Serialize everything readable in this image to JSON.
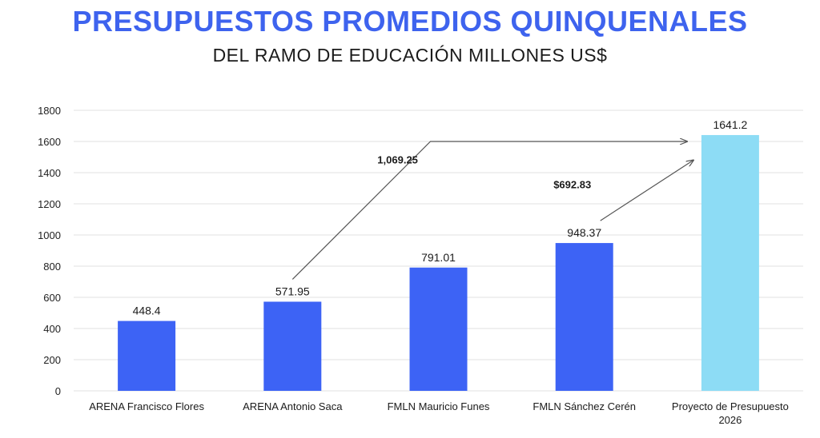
{
  "title": "PRESUPUESTOS PROMEDIOS QUINQUENALES",
  "subtitle": "DEL RAMO DE EDUCACIÓN MILLONES US$",
  "colors": {
    "title": "#3e63ee",
    "bar": "#3d63f5",
    "bar_highlight": "#8ddcf5",
    "grid": "#e2e2e2",
    "arrow": "#555555"
  },
  "chart_data": {
    "type": "bar",
    "categories": [
      "ARENA Francisco Flores",
      "ARENA Antonio Saca",
      "FMLN Mauricio Funes",
      "FMLN Sánchez Cerén",
      [
        "Proyecto de Presupuesto",
        "2026"
      ]
    ],
    "values": [
      448.4,
      571.95,
      791.01,
      948.37,
      1641.2
    ],
    "value_labels": [
      "448.4",
      "571.95",
      "791.01",
      "948.37",
      "1641.2"
    ],
    "highlight_index": 4,
    "ylim": [
      0,
      1800
    ],
    "yticks": [
      0,
      200,
      400,
      600,
      800,
      1000,
      1200,
      1400,
      1600,
      1800
    ],
    "grid": true,
    "annotations": [
      {
        "text": "1,069.25",
        "from_category": 1,
        "to_category": 4
      },
      {
        "text": "$692.83",
        "from_category": 3,
        "to_category": 4
      }
    ]
  }
}
